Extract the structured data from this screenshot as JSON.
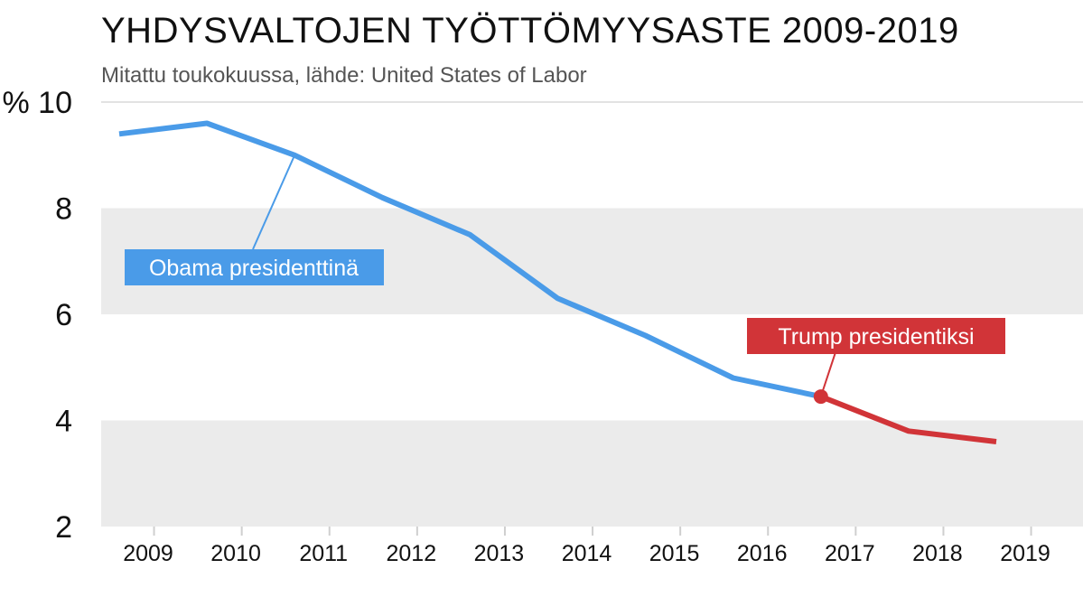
{
  "title": "YHDYSVALTOJEN TYÖTTÖMYYSASTE 2009-2019",
  "subtitle": "Mitattu toukokuussa, lähde: United States of Labor",
  "chart_data": {
    "type": "line",
    "title": "YHDYSVALTOJEN TYÖTTÖMYYSASTE 2009-2019",
    "subtitle": "Mitattu toukokuussa, lähde: United States of Labor",
    "xlabel": "",
    "ylabel": "%",
    "x": [
      2009,
      2010,
      2011,
      2012,
      2013,
      2014,
      2015,
      2016,
      2017,
      2018,
      2019
    ],
    "y": [
      9.4,
      9.6,
      9.0,
      8.2,
      7.5,
      6.3,
      5.6,
      4.8,
      4.45,
      3.8,
      3.6
    ],
    "ylim": [
      2,
      10
    ],
    "yticks": [
      2,
      4,
      6,
      8,
      10
    ],
    "ytick_labels": [
      "2",
      "4",
      "6",
      "8",
      "% 10"
    ],
    "xtick_labels": [
      "2009",
      "2010",
      "2011",
      "2012",
      "2013",
      "2014",
      "2015",
      "2016",
      "2017",
      "2018",
      "2019"
    ],
    "split_index": 8,
    "grid": "alternating horizontal bands",
    "colors": {
      "obama": "#4a9be8",
      "trump": "#d13438",
      "band": "#ebebeb"
    },
    "annotations": {
      "obama": {
        "text": "Obama presidenttinä",
        "x": 2011,
        "y": 9.0
      },
      "trump": {
        "text": "Trump presidentiksi",
        "x": 2017,
        "y": 4.45
      }
    }
  }
}
